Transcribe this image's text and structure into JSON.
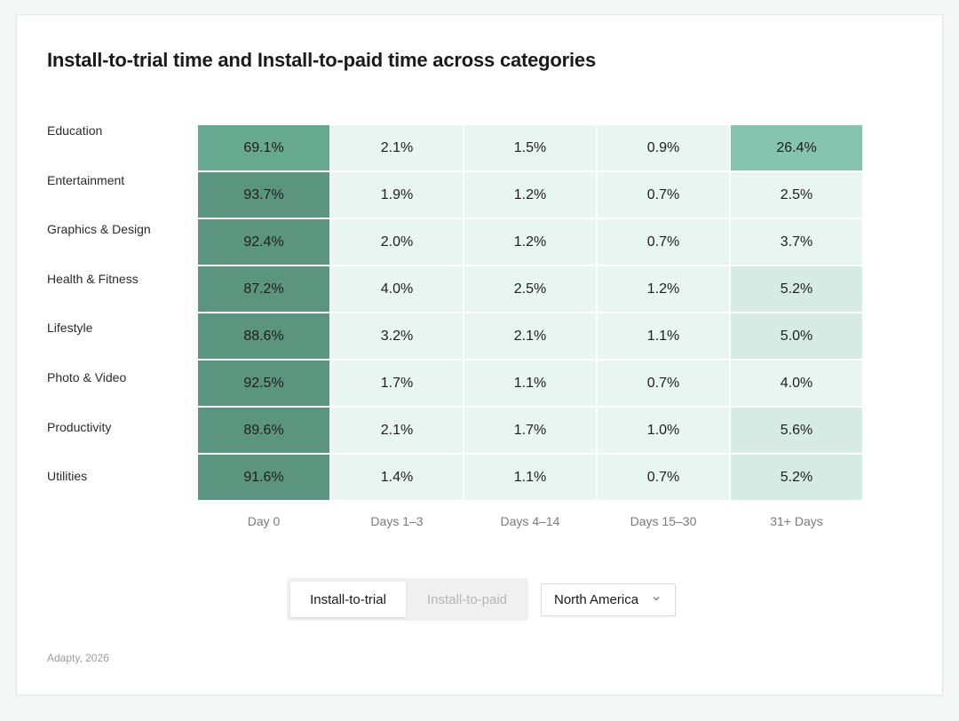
{
  "chart_data": {
    "type": "heatmap",
    "title": "Install-to-trial time and Install-to-paid time across categories",
    "columns": [
      "Day 0",
      "Days 1–3",
      "Days 4–14",
      "Days 15–30",
      "31+ Days"
    ],
    "rows": [
      "Education",
      "Entertainment",
      "Graphics & Design",
      "Health & Fitness",
      "Lifestyle",
      "Photo & Video",
      "Productivity",
      "Utilities"
    ],
    "values": [
      [
        69.1,
        2.1,
        1.5,
        0.9,
        26.4
      ],
      [
        93.7,
        1.9,
        1.2,
        0.7,
        2.5
      ],
      [
        92.4,
        2.0,
        1.2,
        0.7,
        3.7
      ],
      [
        87.2,
        4.0,
        2.5,
        1.2,
        5.2
      ],
      [
        88.6,
        3.2,
        2.1,
        1.1,
        5.0
      ],
      [
        92.5,
        1.7,
        1.1,
        0.7,
        4.0
      ],
      [
        89.6,
        2.1,
        1.7,
        1.0,
        5.6
      ],
      [
        91.6,
        1.4,
        1.1,
        0.7,
        5.2
      ]
    ],
    "value_suffix": "%",
    "colors": {
      "dark": "#5b9580",
      "medium": "#66a890",
      "light_medium": "#85c4ae",
      "pale": "#d6ebe3",
      "lightest": "#e8f5f0"
    }
  },
  "controls": {
    "toggle_active": "Install-to-trial",
    "toggle_inactive": "Install-to-paid",
    "region": "North America"
  },
  "footer": "Adapty, 2026"
}
